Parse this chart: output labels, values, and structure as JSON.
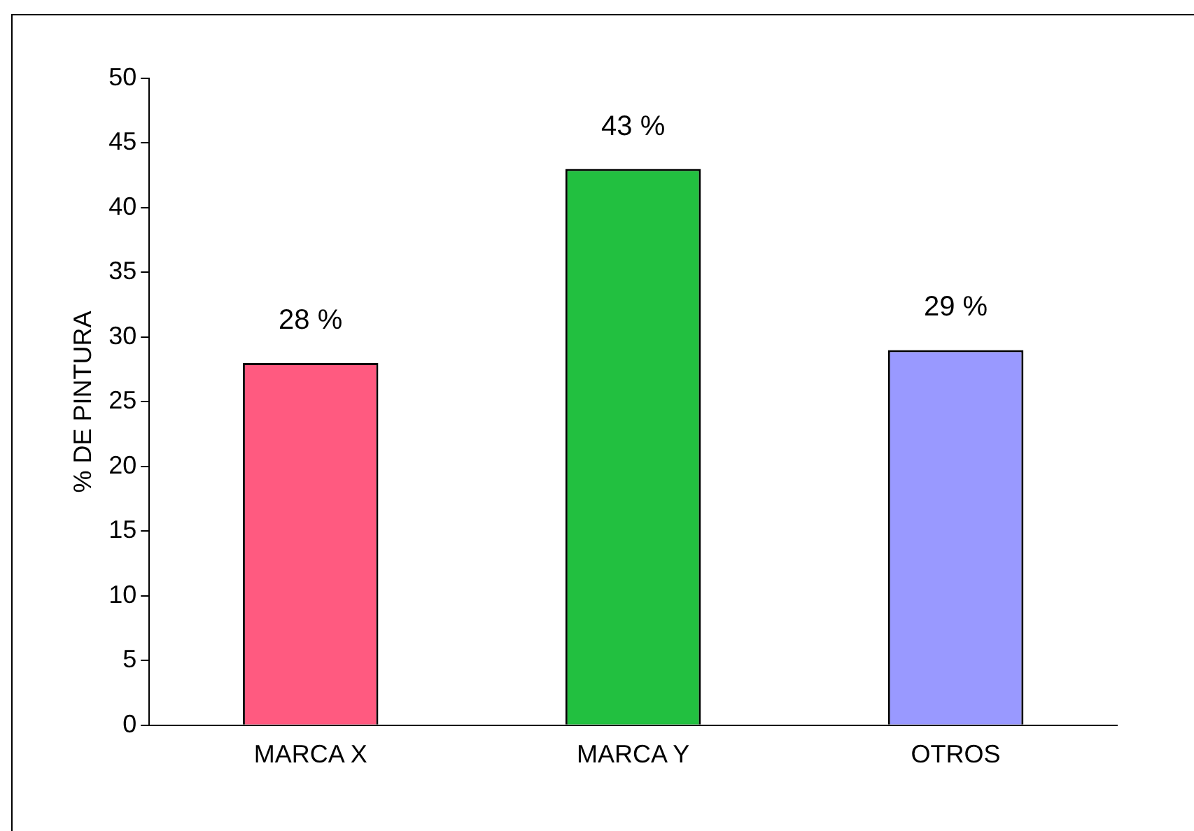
{
  "chart_data": {
    "type": "bar",
    "ylabel": "% DE PINTURA",
    "categories": [
      "MARCA X",
      "MARCA Y",
      "OTROS"
    ],
    "values": [
      28,
      43,
      29
    ],
    "colors": [
      "#ff5a80",
      "#22c040",
      "#9999ff"
    ],
    "value_labels": [
      "28 %",
      "43 %",
      "29 %"
    ],
    "ylim": [
      0,
      50
    ],
    "yticks": [
      0,
      5,
      10,
      15,
      20,
      25,
      30,
      35,
      40,
      45,
      50
    ],
    "grid": false,
    "legend": false
  }
}
